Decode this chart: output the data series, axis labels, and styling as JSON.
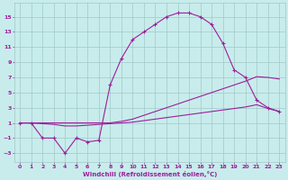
{
  "xlabel": "Windchill (Refroidissement éolien,°C)",
  "bg_color": "#c8ecec",
  "grid_color": "#a0c8c8",
  "line_color": "#9b1f9b",
  "x_ticks": [
    0,
    1,
    2,
    3,
    4,
    5,
    6,
    7,
    8,
    9,
    10,
    11,
    12,
    13,
    14,
    15,
    16,
    17,
    18,
    19,
    20,
    21,
    22,
    23
  ],
  "y_ticks": [
    -3,
    -1,
    1,
    3,
    5,
    7,
    9,
    11,
    13,
    15
  ],
  "ylim": [
    -4.2,
    16.8
  ],
  "xlim": [
    -0.5,
    23.5
  ],
  "series": [
    {
      "x": [
        0,
        1,
        2,
        3,
        4,
        5,
        6,
        7,
        8,
        9,
        10,
        11,
        12,
        13,
        14,
        15,
        16,
        17,
        18,
        19,
        20,
        21,
        22,
        23
      ],
      "y": [
        1,
        1,
        -1,
        -1,
        -3,
        -1,
        -1.5,
        -1.3,
        6,
        9.5,
        12,
        13,
        14,
        15,
        15.5,
        15.5,
        15,
        14,
        11.5,
        8,
        7,
        4,
        3,
        2.5
      ],
      "marker": "+",
      "linestyle": "-"
    },
    {
      "x": [
        0,
        1,
        2,
        3,
        4,
        5,
        6,
        7,
        8,
        9,
        10,
        11,
        12,
        13,
        14,
        15,
        16,
        17,
        18,
        19,
        20,
        21,
        22,
        23
      ],
      "y": [
        1,
        1,
        1,
        1,
        1,
        1,
        1,
        1,
        1,
        1.2,
        1.5,
        2.0,
        2.5,
        3.0,
        3.5,
        4.0,
        4.5,
        5.0,
        5.5,
        6.0,
        6.5,
        7.1,
        7.0,
        6.8
      ],
      "marker": null,
      "linestyle": "-"
    },
    {
      "x": [
        0,
        1,
        2,
        3,
        4,
        5,
        6,
        7,
        8,
        9,
        10,
        11,
        12,
        13,
        14,
        15,
        16,
        17,
        18,
        19,
        20,
        21,
        22,
        23
      ],
      "y": [
        1,
        1,
        0.9,
        0.8,
        0.6,
        0.6,
        0.7,
        0.8,
        0.9,
        1.0,
        1.1,
        1.3,
        1.5,
        1.7,
        1.9,
        2.1,
        2.3,
        2.5,
        2.7,
        2.9,
        3.1,
        3.4,
        2.9,
        2.5
      ],
      "marker": null,
      "linestyle": "-"
    }
  ]
}
